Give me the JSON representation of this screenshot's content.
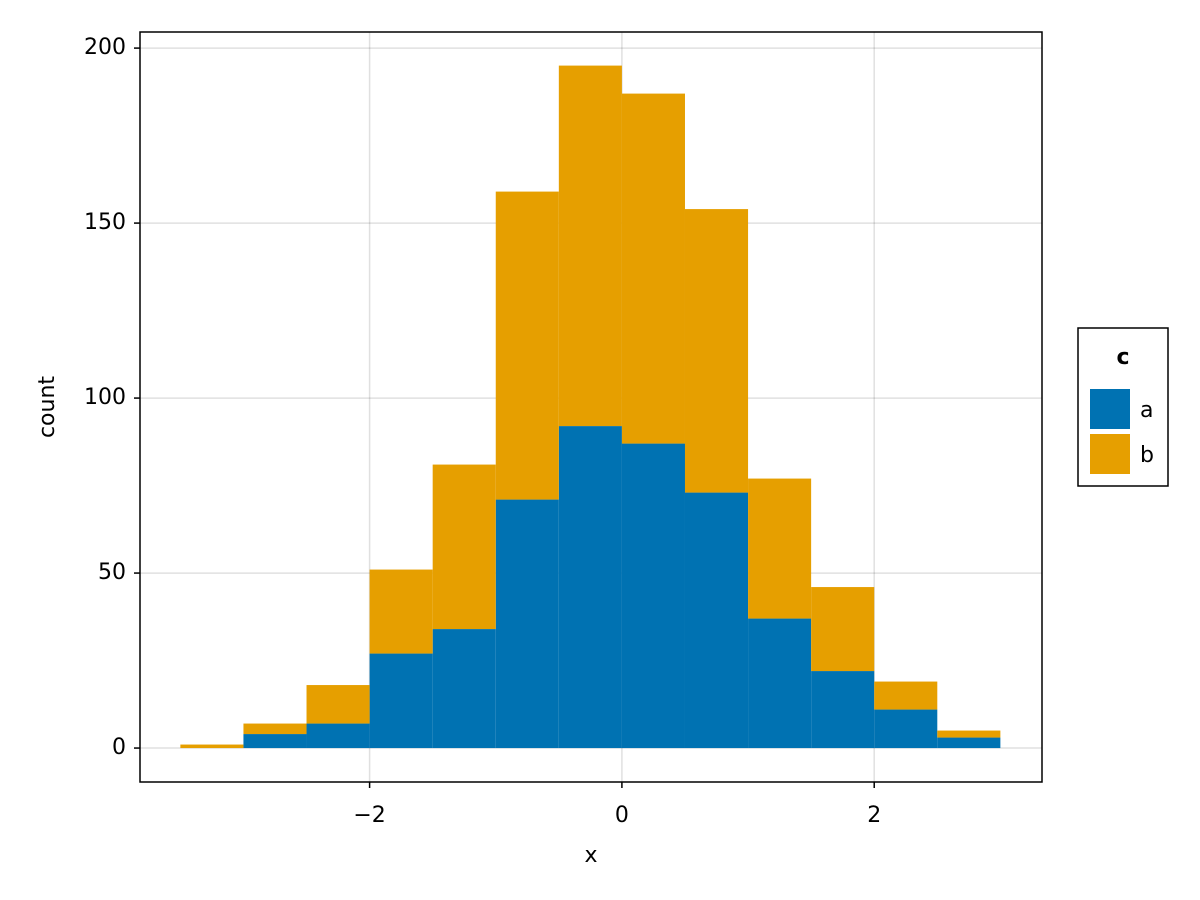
{
  "chart_data": {
    "type": "histogram",
    "stacked": true,
    "xlabel": "x",
    "ylabel": "count",
    "bins": [
      -3.5,
      -3.0,
      -2.5,
      -2.0,
      -1.5,
      -1.0,
      -0.5,
      0.0,
      0.5,
      1.0,
      1.5,
      2.0,
      2.5,
      3.0
    ],
    "series": [
      {
        "name": "a",
        "color": "#0072b2",
        "values": [
          0,
          4,
          7,
          27,
          34,
          71,
          92,
          87,
          73,
          37,
          22,
          11,
          3
        ]
      },
      {
        "name": "b",
        "color": "#e69f00",
        "values": [
          1,
          3,
          11,
          24,
          47,
          88,
          103,
          100,
          81,
          40,
          24,
          8,
          2
        ]
      }
    ],
    "legend_title": "c",
    "legend_position": "right",
    "xlim": [
      -3.82,
      3.33
    ],
    "ylim": [
      -9.7,
      204.6
    ],
    "xticks": [
      {
        "value": -2,
        "label": "−2"
      },
      0,
      2
    ],
    "yticks": [
      0,
      50,
      100,
      150,
      200
    ],
    "grid": true
  }
}
